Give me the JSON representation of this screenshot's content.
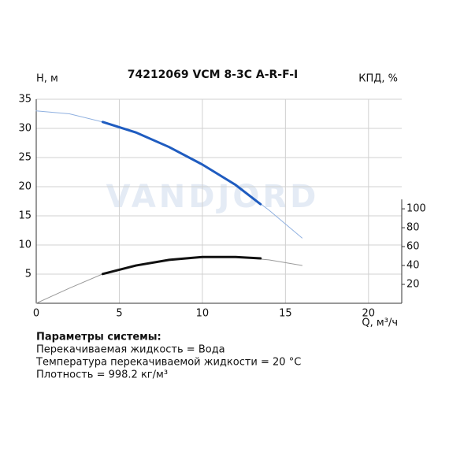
{
  "chart_data": {
    "type": "line",
    "title": "74212069 VCM 8-3C A-R-F-I",
    "watermark": "VANDJORD",
    "ylabel": "H, м",
    "y2label": "КПД, %",
    "xlabel": "Q, м³/ч",
    "xlim": [
      0,
      22
    ],
    "xticks": [
      0,
      5,
      10,
      15,
      20
    ],
    "ylim": [
      0,
      35
    ],
    "yticks": [
      5,
      10,
      15,
      20,
      25,
      30,
      35
    ],
    "y2lim": [
      0,
      216
    ],
    "y2ticks": [
      20,
      40,
      60,
      80,
      100
    ],
    "grid": true,
    "series": [
      {
        "color": "#8fb0e0",
        "width": 1,
        "x": [
          0,
          2,
          4,
          6,
          8,
          10,
          12,
          14,
          16
        ],
        "values": [
          33,
          32.5,
          31.1,
          29.3,
          26.8,
          23.8,
          20.3,
          16.0,
          11.2
        ]
      },
      {
        "color": "#1f5cc0",
        "width": 3,
        "x": [
          4,
          6,
          8,
          10,
          12,
          13.5
        ],
        "values": [
          31.1,
          29.3,
          26.8,
          23.8,
          20.3,
          17.0
        ]
      },
      {
        "color": "#999999",
        "width": 1,
        "axis": "y2",
        "x": [
          0,
          2,
          4,
          6,
          8,
          10,
          12,
          14,
          16
        ],
        "values": [
          0,
          16,
          31,
          40,
          46,
          49,
          49,
          46,
          40
        ]
      },
      {
        "color": "#111111",
        "width": 3,
        "axis": "y2",
        "x": [
          4,
          6,
          8,
          10,
          12,
          13.5
        ],
        "values": [
          31,
          40,
          46,
          49,
          49,
          47.5
        ]
      }
    ]
  },
  "system": {
    "title": "Параметры системы:",
    "lines": [
      "Перекачиваемая жидкость = Вода",
      "Температура перекачиваемой жидкости = 20 °C",
      "Плотность = 998.2 кг/м³"
    ]
  }
}
